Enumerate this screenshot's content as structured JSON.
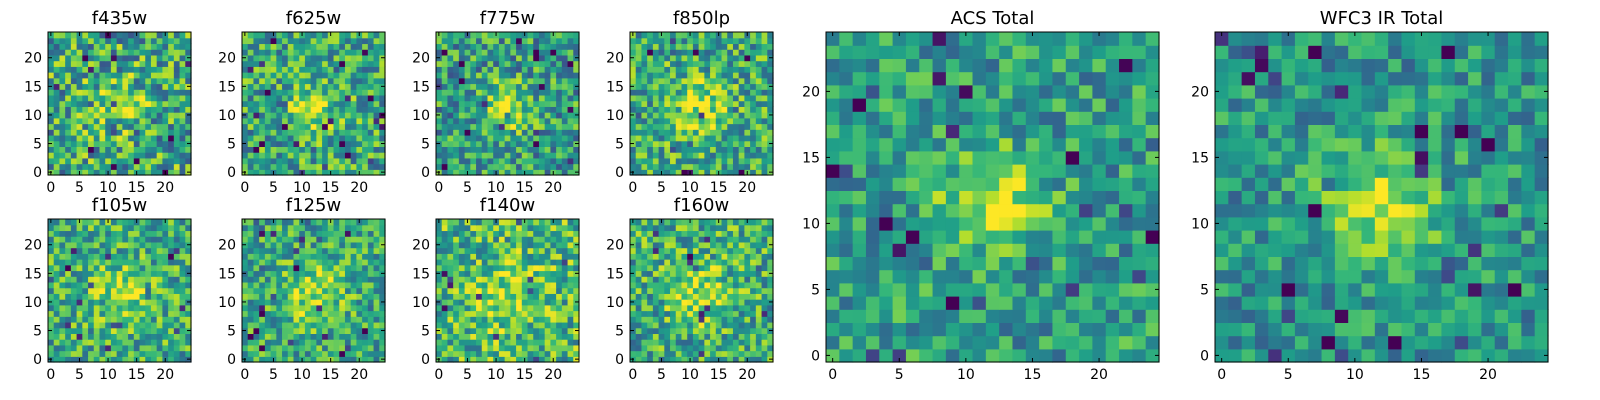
{
  "chart_data": [
    {
      "type": "heatmap",
      "title": "f435w",
      "grid_size": 25,
      "xlim": [
        0,
        24
      ],
      "ylim": [
        0,
        24
      ],
      "xticks": [
        0,
        5,
        10,
        15,
        20
      ],
      "yticks": [
        0,
        5,
        10,
        15,
        20
      ],
      "colormap": "viridis",
      "source_spread": 3.5,
      "source_amp": 0.18,
      "noise_amp": 0.34,
      "base": 0.6
    },
    {
      "type": "heatmap",
      "title": "f625w",
      "grid_size": 25,
      "xlim": [
        0,
        24
      ],
      "ylim": [
        0,
        24
      ],
      "xticks": [
        0,
        5,
        10,
        15,
        20
      ],
      "yticks": [
        0,
        5,
        10,
        15,
        20
      ],
      "colormap": "viridis",
      "source_spread": 3.0,
      "source_amp": 0.3,
      "noise_amp": 0.3,
      "base": 0.6
    },
    {
      "type": "heatmap",
      "title": "f775w",
      "grid_size": 25,
      "xlim": [
        0,
        24
      ],
      "ylim": [
        0,
        24
      ],
      "xticks": [
        0,
        5,
        10,
        15,
        20
      ],
      "yticks": [
        0,
        5,
        10,
        15,
        20
      ],
      "colormap": "viridis",
      "source_spread": 3.0,
      "source_amp": 0.35,
      "noise_amp": 0.3,
      "base": 0.55
    },
    {
      "type": "heatmap",
      "title": "f850lp",
      "grid_size": 25,
      "xlim": [
        0,
        24
      ],
      "ylim": [
        0,
        24
      ],
      "xticks": [
        0,
        5,
        10,
        15,
        20
      ],
      "yticks": [
        0,
        5,
        10,
        15,
        20
      ],
      "colormap": "viridis",
      "source_spread": 3.2,
      "source_amp": 0.3,
      "noise_amp": 0.3,
      "base": 0.62
    },
    {
      "type": "heatmap",
      "title": "f105w",
      "grid_size": 25,
      "xlim": [
        0,
        24
      ],
      "ylim": [
        0,
        24
      ],
      "xticks": [
        0,
        5,
        10,
        15,
        20
      ],
      "yticks": [
        0,
        5,
        10,
        15,
        20
      ],
      "colormap": "viridis",
      "source_spread": 3.5,
      "source_amp": 0.25,
      "noise_amp": 0.28,
      "base": 0.62
    },
    {
      "type": "heatmap",
      "title": "f125w",
      "grid_size": 25,
      "xlim": [
        0,
        24
      ],
      "ylim": [
        0,
        24
      ],
      "xticks": [
        0,
        5,
        10,
        15,
        20
      ],
      "yticks": [
        0,
        5,
        10,
        15,
        20
      ],
      "colormap": "viridis",
      "source_spread": 3.8,
      "source_amp": 0.28,
      "noise_amp": 0.26,
      "base": 0.6
    },
    {
      "type": "heatmap",
      "title": "f140w",
      "grid_size": 25,
      "xlim": [
        0,
        24
      ],
      "ylim": [
        0,
        24
      ],
      "xticks": [
        0,
        5,
        10,
        15,
        20
      ],
      "yticks": [
        0,
        5,
        10,
        15,
        20
      ],
      "colormap": "viridis",
      "source_spread": 4.0,
      "source_amp": 0.22,
      "noise_amp": 0.3,
      "base": 0.66
    },
    {
      "type": "heatmap",
      "title": "f160w",
      "grid_size": 25,
      "xlim": [
        0,
        24
      ],
      "ylim": [
        0,
        24
      ],
      "xticks": [
        0,
        5,
        10,
        15,
        20
      ],
      "yticks": [
        0,
        5,
        10,
        15,
        20
      ],
      "colormap": "viridis",
      "source_spread": 3.5,
      "source_amp": 0.3,
      "noise_amp": 0.3,
      "base": 0.62
    },
    {
      "type": "heatmap",
      "title": "ACS Total",
      "grid_size": 25,
      "xlim": [
        0,
        24
      ],
      "ylim": [
        0,
        24
      ],
      "xticks": [
        0,
        5,
        10,
        15,
        20
      ],
      "yticks": [
        0,
        5,
        10,
        15,
        20
      ],
      "colormap": "viridis",
      "source_spread": 2.6,
      "source_amp": 0.42,
      "noise_amp": 0.24,
      "base": 0.55
    },
    {
      "type": "heatmap",
      "title": "WFC3 IR Total",
      "grid_size": 25,
      "xlim": [
        0,
        24
      ],
      "ylim": [
        0,
        24
      ],
      "xticks": [
        0,
        5,
        10,
        15,
        20
      ],
      "yticks": [
        0,
        5,
        10,
        15,
        20
      ],
      "colormap": "viridis",
      "source_spread": 3.0,
      "source_amp": 0.42,
      "noise_amp": 0.22,
      "base": 0.52
    }
  ]
}
